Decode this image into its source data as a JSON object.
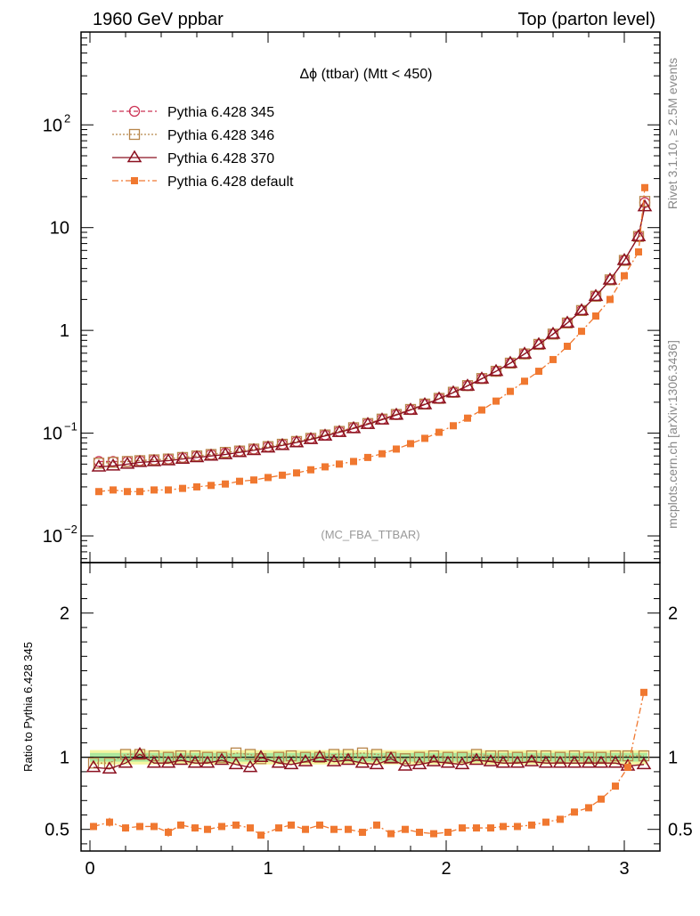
{
  "header": {
    "left": "1960 GeV ppbar",
    "right": "Top (parton level)"
  },
  "side_labels": {
    "rivet": "Rivet 3.1.10, ≥ 2.5M events",
    "mcplots": "mcplots.cern.ch [arXiv:1306.3436]"
  },
  "chart_data": [
    {
      "type": "line",
      "title": "Δϕ (ttbar) (Mtt < 450)",
      "annotation": "(MC_FBA_TTBAR)",
      "yscale": "log",
      "xlim": [
        -0.05,
        3.2
      ],
      "ylim": [
        0.0055,
        800
      ],
      "x_ticks": [
        0,
        1,
        2,
        3
      ],
      "y_tick_labels": [
        {
          "value": 0.01,
          "base": "10",
          "exp": "−2"
        },
        {
          "value": 0.1,
          "base": "10",
          "exp": "−1"
        },
        {
          "value": 1,
          "base": "1",
          "exp": ""
        },
        {
          "value": 10,
          "base": "10",
          "exp": ""
        },
        {
          "value": 100,
          "base": "10",
          "exp": "2"
        }
      ],
      "legend_position": "top-left",
      "x": [
        0.05,
        0.13,
        0.21,
        0.28,
        0.36,
        0.44,
        0.52,
        0.6,
        0.68,
        0.76,
        0.84,
        0.92,
        1.0,
        1.08,
        1.16,
        1.24,
        1.32,
        1.4,
        1.48,
        1.56,
        1.64,
        1.72,
        1.8,
        1.88,
        1.96,
        2.04,
        2.12,
        2.2,
        2.28,
        2.36,
        2.44,
        2.52,
        2.6,
        2.68,
        2.76,
        2.84,
        2.92,
        3.0,
        3.08
      ],
      "series": [
        {
          "name": "Pythia 6.428 345",
          "color": "#cc3355",
          "marker": "circle",
          "dash": "5,3",
          "values": [
            0.053,
            0.053,
            0.053,
            0.054,
            0.055,
            0.056,
            0.058,
            0.06,
            0.062,
            0.064,
            0.067,
            0.07,
            0.074,
            0.078,
            0.083,
            0.089,
            0.096,
            0.104,
            0.113,
            0.124,
            0.137,
            0.152,
            0.17,
            0.192,
            0.218,
            0.25,
            0.29,
            0.34,
            0.4,
            0.48,
            0.59,
            0.73,
            0.92,
            1.18,
            1.56,
            2.15,
            3.1,
            4.8,
            8.2
          ]
        },
        {
          "name": "Pythia 6.428 346",
          "color": "#b8864b",
          "marker": "square-open",
          "dash": "2,2",
          "values": [
            0.051,
            0.052,
            0.053,
            0.054,
            0.055,
            0.056,
            0.058,
            0.06,
            0.062,
            0.065,
            0.067,
            0.07,
            0.074,
            0.078,
            0.083,
            0.089,
            0.096,
            0.104,
            0.113,
            0.124,
            0.137,
            0.152,
            0.17,
            0.192,
            0.218,
            0.25,
            0.29,
            0.34,
            0.4,
            0.48,
            0.59,
            0.73,
            0.92,
            1.18,
            1.56,
            2.15,
            3.1,
            4.8,
            8.2
          ]
        },
        {
          "name": "Pythia 6.428 370",
          "color": "#8b1020",
          "marker": "triangle",
          "dash": "",
          "values": [
            0.047,
            0.048,
            0.05,
            0.052,
            0.053,
            0.054,
            0.056,
            0.058,
            0.06,
            0.062,
            0.065,
            0.068,
            0.072,
            0.076,
            0.081,
            0.087,
            0.094,
            0.102,
            0.111,
            0.122,
            0.135,
            0.15,
            0.168,
            0.19,
            0.216,
            0.248,
            0.288,
            0.338,
            0.4,
            0.48,
            0.59,
            0.73,
            0.92,
            1.18,
            1.56,
            2.15,
            3.1,
            4.8,
            8.2
          ]
        },
        {
          "name": "Pythia 6.428 default",
          "color": "#f07830",
          "marker": "square",
          "dash": "7,3,2,3",
          "values": [
            0.027,
            0.028,
            0.027,
            0.027,
            0.028,
            0.028,
            0.029,
            0.03,
            0.031,
            0.032,
            0.034,
            0.035,
            0.037,
            0.039,
            0.041,
            0.044,
            0.047,
            0.05,
            0.053,
            0.058,
            0.063,
            0.07,
            0.079,
            0.089,
            0.102,
            0.118,
            0.14,
            0.168,
            0.205,
            0.255,
            0.32,
            0.4,
            0.52,
            0.7,
            0.98,
            1.38,
            2.0,
            3.4,
            5.8
          ]
        }
      ],
      "last_bin": {
        "x": 3.115,
        "values": [
          17.5,
          18.0,
          16.0,
          24.5
        ]
      }
    },
    {
      "type": "line",
      "ylabel": "Ratio to Pythia 6.428 345",
      "xlim": [
        -0.05,
        3.2
      ],
      "ylim": [
        0.35,
        2.35
      ],
      "x_ticks": [
        0,
        1,
        2,
        3
      ],
      "y_ticks": [
        0.5,
        1,
        2
      ],
      "y_tick_labels": [
        "0.5",
        "1",
        "2"
      ],
      "band": {
        "low": 0.97,
        "high": 1.03,
        "outer_low": 0.95,
        "outer_high": 1.05
      },
      "x": [
        0.02,
        0.11,
        0.2,
        0.28,
        0.36,
        0.44,
        0.51,
        0.59,
        0.66,
        0.74,
        0.82,
        0.9,
        0.96,
        1.06,
        1.13,
        1.21,
        1.29,
        1.37,
        1.45,
        1.53,
        1.61,
        1.69,
        1.77,
        1.85,
        1.93,
        2.01,
        2.09,
        2.17,
        2.25,
        2.32,
        2.4,
        2.48,
        2.56,
        2.64,
        2.72,
        2.8,
        2.87,
        2.95,
        3.02,
        3.11
      ],
      "series": [
        {
          "name": "Pythia 6.428 346",
          "values": [
            0.96,
            0.96,
            1.02,
            1.02,
            1.01,
            1.0,
            1.01,
            1.01,
            1.0,
            1.0,
            1.03,
            1.02,
            0.99,
            1.0,
            1.01,
            1.0,
            1.0,
            1.02,
            1.02,
            1.03,
            1.02,
            1.0,
            0.99,
            1.0,
            1.01,
            1.0,
            1.0,
            1.02,
            1.01,
            1.01,
            1.0,
            1.01,
            1.01,
            1.0,
            1.01,
            1.0,
            1.0,
            1.01,
            1.01,
            1.01
          ]
        },
        {
          "name": "Pythia 6.428 370",
          "values": [
            0.93,
            0.92,
            0.96,
            1.02,
            0.96,
            0.96,
            0.98,
            0.96,
            0.96,
            0.98,
            0.95,
            0.93,
            1.0,
            0.96,
            0.95,
            0.97,
            1.0,
            0.97,
            0.98,
            0.96,
            0.95,
            0.99,
            0.94,
            0.95,
            0.97,
            0.96,
            0.95,
            0.98,
            0.97,
            0.96,
            0.96,
            0.97,
            0.96,
            0.96,
            0.96,
            0.96,
            0.96,
            0.96,
            0.94,
            0.95
          ]
        },
        {
          "name": "Pythia 6.428 default",
          "values": [
            0.52,
            0.55,
            0.51,
            0.52,
            0.52,
            0.48,
            0.53,
            0.51,
            0.5,
            0.52,
            0.53,
            0.51,
            0.46,
            0.51,
            0.53,
            0.5,
            0.53,
            0.5,
            0.5,
            0.48,
            0.53,
            0.47,
            0.5,
            0.48,
            0.47,
            0.48,
            0.51,
            0.51,
            0.51,
            0.52,
            0.52,
            0.53,
            0.55,
            0.57,
            0.62,
            0.65,
            0.71,
            0.8,
            0.93,
            1.45
          ]
        }
      ],
      "errors": [
        0.025,
        0.03,
        0.025,
        0.025,
        0.025,
        0.03,
        0.025,
        0.025,
        0.02,
        0.02,
        0.02,
        0.02,
        0.02,
        0.02,
        0.015,
        0.015,
        0.015,
        0.015,
        0.012,
        0.012,
        0.012,
        0.012,
        0.01,
        0.01,
        0.01,
        0.01,
        0.01,
        0.01,
        0.008,
        0.008,
        0.008,
        0.008,
        0.008,
        0.008,
        0.008,
        0.008,
        0.008,
        0.008,
        0.008,
        0.008
      ]
    }
  ]
}
